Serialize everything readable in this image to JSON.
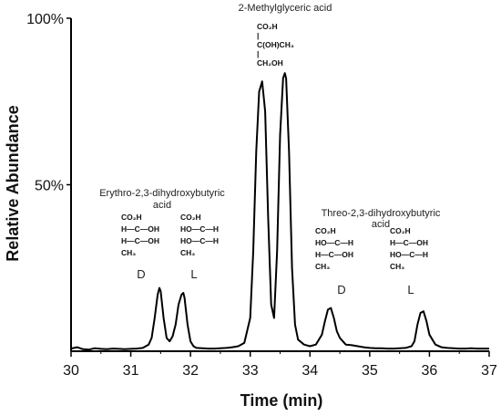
{
  "chart_data": {
    "type": "line",
    "title": "",
    "xlabel": "Time (min)",
    "ylabel": "Relative Abundance",
    "xlim": [
      30,
      37
    ],
    "ylim": [
      0,
      100
    ],
    "x_ticks": [
      30,
      31,
      32,
      33,
      34,
      35,
      36,
      37
    ],
    "x_tick_labels": [
      "30",
      "31",
      "32",
      "33",
      "34",
      "35",
      "36",
      "37"
    ],
    "y_ticks": [
      50,
      100
    ],
    "y_tick_labels": [
      "50%",
      "100%"
    ],
    "grid": false,
    "legend": "none",
    "line_color": "#000000",
    "series": [
      {
        "name": "",
        "x": [
          30.0,
          30.1,
          30.2,
          30.3,
          30.4,
          30.5,
          30.6,
          30.7,
          30.8,
          30.9,
          31.0,
          31.1,
          31.2,
          31.3,
          31.35,
          31.4,
          31.45,
          31.48,
          31.5,
          31.55,
          31.6,
          31.65,
          31.7,
          31.75,
          31.8,
          31.85,
          31.88,
          31.9,
          31.95,
          32.0,
          32.05,
          32.1,
          32.2,
          32.3,
          32.4,
          32.5,
          32.6,
          32.7,
          32.8,
          32.9,
          33.0,
          33.05,
          33.1,
          33.15,
          33.2,
          33.25,
          33.3,
          33.35,
          33.4,
          33.45,
          33.5,
          33.55,
          33.58,
          33.6,
          33.65,
          33.7,
          33.75,
          33.8,
          33.9,
          34.0,
          34.1,
          34.2,
          34.25,
          34.3,
          34.35,
          34.4,
          34.45,
          34.5,
          34.6,
          34.7,
          34.8,
          34.9,
          35.0,
          35.1,
          35.2,
          35.3,
          35.4,
          35.5,
          35.6,
          35.7,
          35.75,
          35.8,
          35.85,
          35.9,
          35.95,
          36.0,
          36.1,
          36.2,
          36.3,
          36.4,
          36.5,
          36.6,
          36.7,
          36.8,
          36.9,
          37.0
        ],
        "y": [
          0.8,
          1.2,
          0.6,
          0.5,
          0.9,
          0.7,
          0.6,
          0.8,
          0.7,
          0.6,
          0.7,
          0.8,
          1.0,
          2.0,
          4.0,
          10.0,
          17.0,
          19.0,
          18.0,
          10.0,
          4.0,
          3.0,
          4.5,
          8.0,
          14.0,
          17.0,
          17.5,
          16.0,
          8.0,
          3.0,
          1.5,
          1.0,
          0.9,
          0.8,
          0.8,
          0.9,
          1.0,
          1.2,
          1.5,
          2.5,
          10.0,
          30.0,
          60.0,
          78.0,
          81.0,
          72.0,
          40.0,
          14.0,
          10.0,
          30.0,
          65.0,
          82.0,
          83.5,
          82.0,
          60.0,
          25.0,
          8.0,
          3.5,
          2.0,
          1.5,
          2.0,
          5.0,
          9.0,
          12.5,
          13.0,
          10.0,
          6.0,
          4.0,
          2.0,
          1.8,
          1.5,
          1.2,
          1.0,
          0.9,
          0.9,
          0.8,
          0.8,
          0.9,
          1.0,
          1.5,
          3.0,
          8.0,
          11.5,
          12.0,
          9.0,
          5.0,
          2.0,
          1.2,
          1.0,
          0.9,
          0.8,
          0.8,
          0.9,
          0.8,
          0.8,
          0.8
        ]
      }
    ],
    "annotations": [
      {
        "id": "mga",
        "title_lines": [
          "2-Methylglyceric acid"
        ],
        "structures": [
          {
            "lines": [
              "CO₂H",
              "|",
              "C(OH)CH₃",
              "|",
              "CH₂OH"
            ],
            "letter": ""
          }
        ]
      },
      {
        "id": "erythro",
        "title_lines": [
          "Erythro-2,3-dihydroxybutyric",
          "acid"
        ],
        "structures": [
          {
            "lines": [
              "CO₂H",
              "H—C—OH",
              "H—C—OH",
              "CH₃"
            ],
            "letter": "D"
          },
          {
            "lines": [
              "CO₂H",
              "HO—C—H",
              "HO—C—H",
              "CH₃"
            ],
            "letter": "L"
          }
        ]
      },
      {
        "id": "threo",
        "title_lines": [
          "Threo-2,3-dihydroxybutyric",
          "acid"
        ],
        "structures": [
          {
            "lines": [
              "CO₂H",
              "HO—C—H",
              "H—C—OH",
              "CH₃"
            ],
            "letter": "D"
          },
          {
            "lines": [
              "CO₂H",
              "H—C—OH",
              "HO—C—H",
              "CH₃"
            ],
            "letter": "L"
          }
        ]
      }
    ]
  }
}
